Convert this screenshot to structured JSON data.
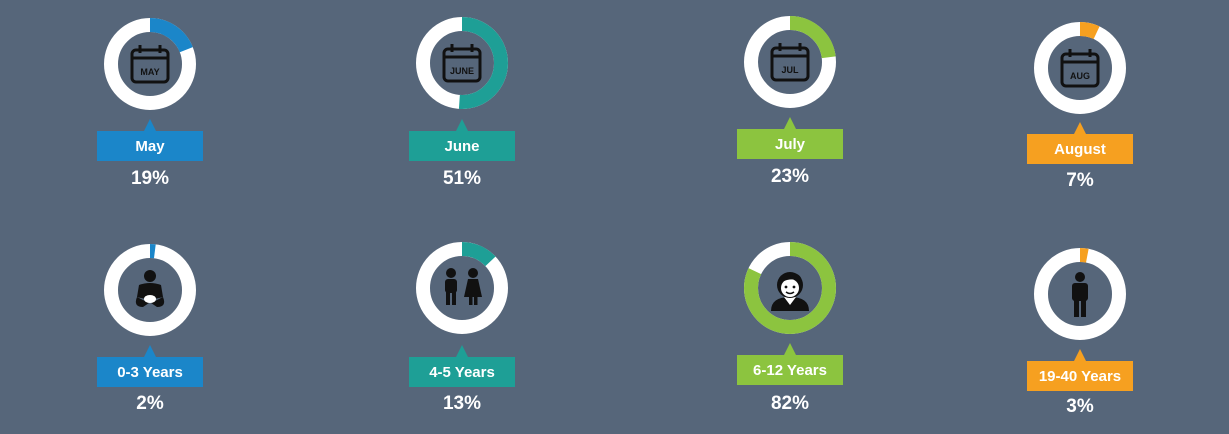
{
  "chart_data": {
    "type": "donut-grid",
    "ring_color": "#FFFFFF",
    "hole_color": "#56667A",
    "items": [
      {
        "label": "May",
        "value": 19,
        "value_text": "19%",
        "color": "#1B86C9",
        "icon": "calendar-icon",
        "icon_text": "MAY"
      },
      {
        "label": "June",
        "value": 51,
        "value_text": "51%",
        "color": "#1E9F96",
        "icon": "calendar-icon",
        "icon_text": "JUNE"
      },
      {
        "label": "July",
        "value": 23,
        "value_text": "23%",
        "color": "#8CC43F",
        "icon": "calendar-icon",
        "icon_text": "JUL"
      },
      {
        "label": "August",
        "value": 7,
        "value_text": "7%",
        "color": "#F6A020",
        "icon": "calendar-icon",
        "icon_text": "AUG"
      },
      {
        "label": "0-3 Years",
        "value": 2,
        "value_text": "2%",
        "color": "#1B86C9",
        "icon": "baby-icon",
        "icon_text": ""
      },
      {
        "label": "4-5 Years",
        "value": 13,
        "value_text": "13%",
        "color": "#1E9F96",
        "icon": "children-icon",
        "icon_text": ""
      },
      {
        "label": "6-12 Years",
        "value": 82,
        "value_text": "82%",
        "color": "#8CC43F",
        "icon": "boy-face-icon",
        "icon_text": ""
      },
      {
        "label": "19-40 Years",
        "value": 3,
        "value_text": "3%",
        "color": "#F6A020",
        "icon": "man-icon",
        "icon_text": ""
      }
    ]
  }
}
